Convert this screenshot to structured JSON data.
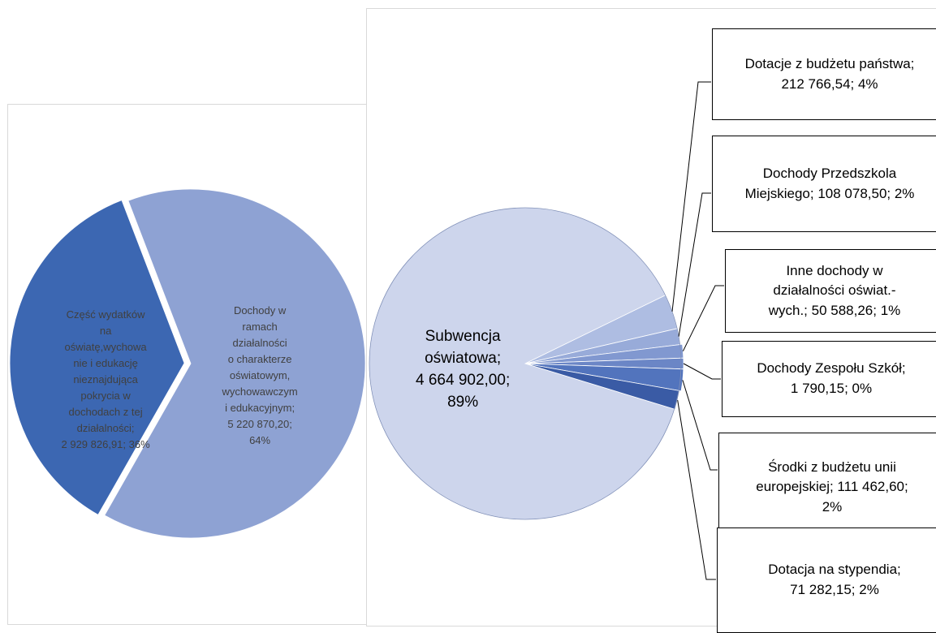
{
  "chart_data": [
    {
      "type": "pie",
      "title": "",
      "slices": [
        {
          "label_lines": [
            "Dochody w",
            "ramach",
            "działalności",
            "o charakterze",
            "oświatowym,",
            "wychowawczym",
            "i edukacyjnym;",
            "5 220 870,20;",
            "64%"
          ],
          "value": 5220870.2,
          "percent": 64,
          "color": "#8ea2d3"
        },
        {
          "label_lines": [
            "Część wydatków",
            "na",
            "oświatę,wychowa",
            "nie i edukację",
            "nieznajdująca",
            "pokrycia w",
            "dochodach z tej",
            "działalności;",
            "2 929 826,91; 36%"
          ],
          "value": 2929826.91,
          "percent": 36,
          "color": "#3c67b2",
          "exploded": true
        }
      ]
    },
    {
      "type": "pie",
      "title": "",
      "slices": [
        {
          "label_lines": [
            "Subwencja",
            "oświatowa;",
            "4 664 902,00;",
            "89%"
          ],
          "value": 4664902.0,
          "percent": 89,
          "color": "#cdd5ec"
        },
        {
          "label_lines": [
            "Dotacje z budżetu państwa;",
            "212 766,54; 4%"
          ],
          "value": 212766.54,
          "percent": 4,
          "color": "#aebde2"
        },
        {
          "label_lines": [
            "Dochody Przedszkola",
            "Miejskiego; 108 078,50; 2%"
          ],
          "value": 108078.5,
          "percent": 2,
          "color": "#98abd9"
        },
        {
          "label_lines": [
            "Inne dochody w",
            "działalności oświat.-",
            "wych.; 50 588,26; 1%"
          ],
          "value": 50588.26,
          "percent": 1,
          "color": "#8198d0"
        },
        {
          "label_lines": [
            "Dochody Zespołu Szkół;",
            "1 790,15; 0%"
          ],
          "value": 1790.15,
          "percent": 0,
          "color": "#6b86c6"
        },
        {
          "label_lines": [
            "Środki z budżetu unii",
            "europejskiej; 111 462,60;",
            "2%"
          ],
          "value": 111462.6,
          "percent": 2,
          "color": "#5274bd"
        },
        {
          "label_lines": [
            "Dotacja na stypendia;",
            "71 282,15; 2%"
          ],
          "value": 71282.15,
          "percent": 2,
          "color": "#3a5ba5"
        }
      ]
    }
  ]
}
